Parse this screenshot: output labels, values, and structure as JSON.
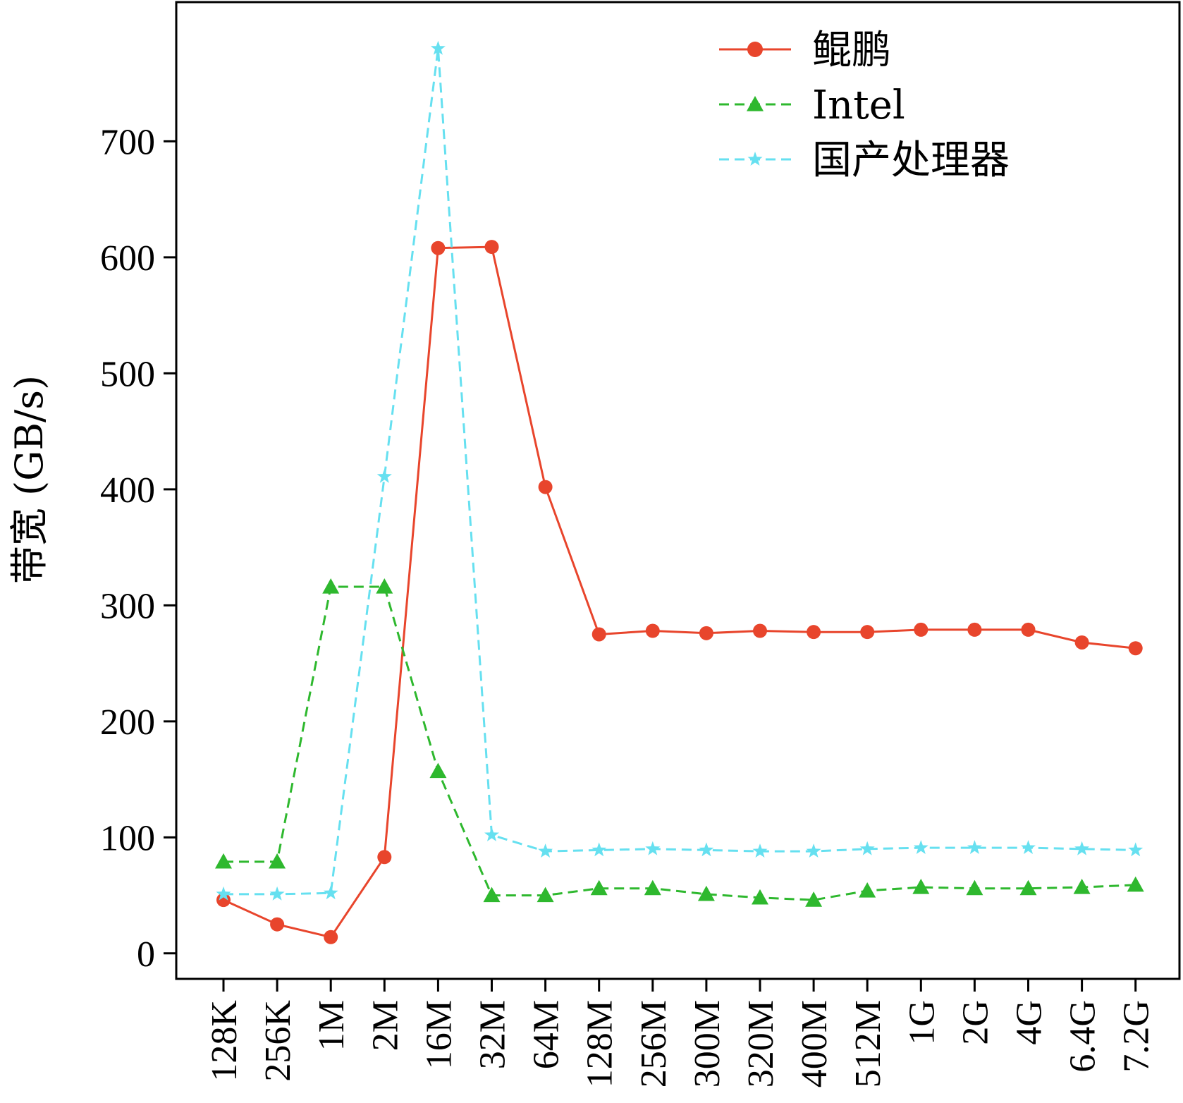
{
  "chart_data": {
    "type": "line",
    "title": "",
    "xlabel": "",
    "ylabel": "带宽 (GB/s)",
    "categories": [
      "128K",
      "256K",
      "1M",
      "2M",
      "16M",
      "32M",
      "64M",
      "128M",
      "256M",
      "300M",
      "320M",
      "400M",
      "512M",
      "1G",
      "2G",
      "4G",
      "6.4G",
      "7.2G"
    ],
    "yticks": [
      0,
      100,
      200,
      300,
      400,
      500,
      600,
      700
    ],
    "ylim": [
      -22,
      820
    ],
    "grid": false,
    "legend_position": "top-right",
    "series": [
      {
        "name": "鲲鹏",
        "color": "#e8452c",
        "marker": "circle",
        "dash": "solid",
        "values": [
          46,
          25,
          14,
          83,
          608,
          609,
          402,
          275,
          278,
          276,
          278,
          277,
          277,
          279,
          279,
          279,
          268,
          263
        ]
      },
      {
        "name": "Intel",
        "color": "#2eb82e",
        "marker": "triangle",
        "dash": "dashed",
        "values": [
          79,
          79,
          316,
          316,
          157,
          50,
          50,
          56,
          56,
          51,
          48,
          46,
          54,
          57,
          56,
          56,
          57,
          59
        ]
      },
      {
        "name": "国产处理器",
        "color": "#66e0f0",
        "marker": "star",
        "dash": "dashed",
        "values": [
          51,
          51,
          52,
          411,
          780,
          102,
          88,
          89,
          90,
          89,
          88,
          88,
          90,
          91,
          91,
          91,
          90,
          89
        ]
      }
    ]
  }
}
